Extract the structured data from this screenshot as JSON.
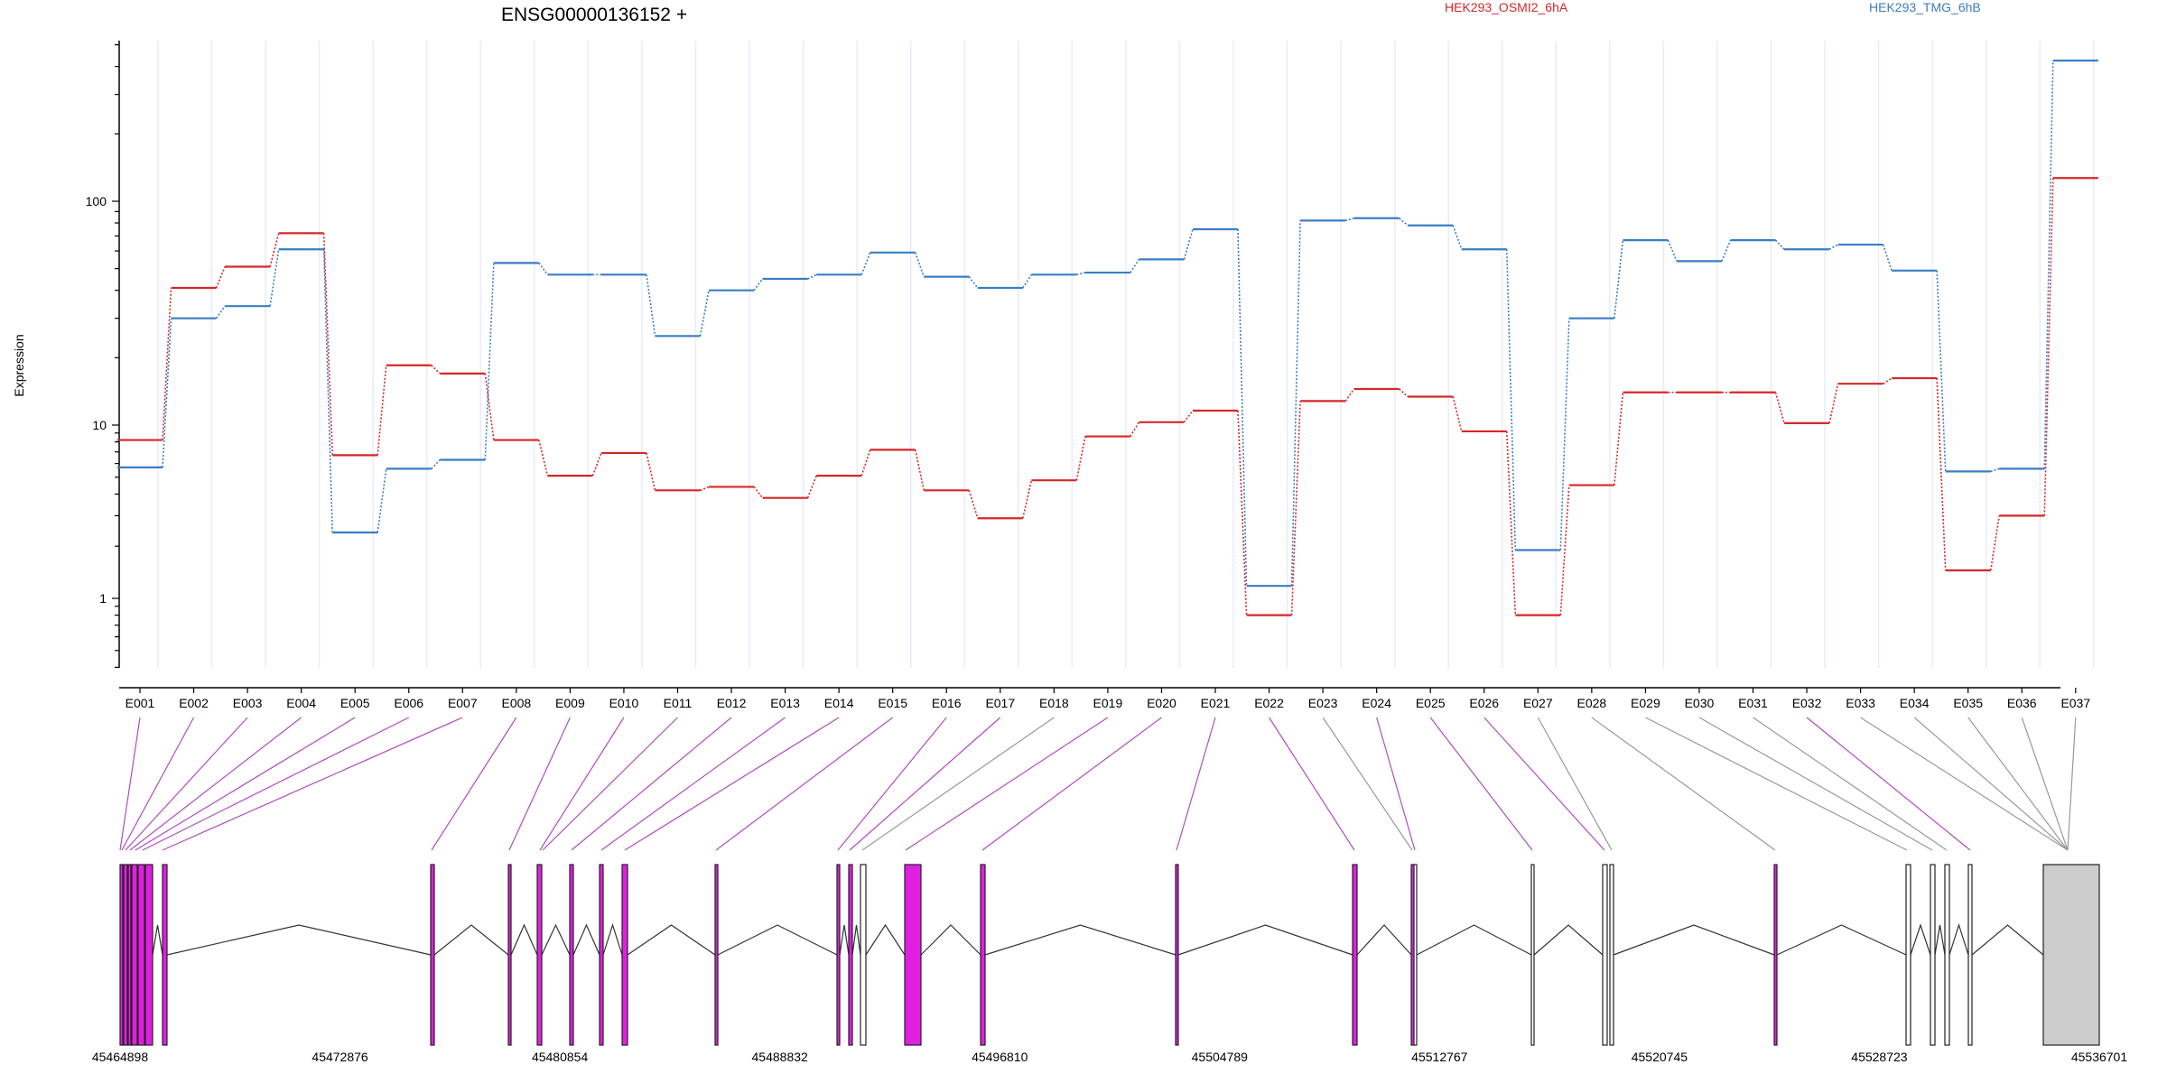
{
  "chart_data": {
    "type": "line",
    "title": "ENSG00000136152 +",
    "ylabel": "Expression",
    "yscale": "log",
    "ylim": [
      0.4,
      550
    ],
    "yticks": [
      1,
      10,
      100
    ],
    "ytick_labels": [
      "1",
      "10",
      "100"
    ],
    "grid": "vertical per exon",
    "legend_placement": "top",
    "categories": [
      "E001",
      "E002",
      "E003",
      "E004",
      "E005",
      "E006",
      "E007",
      "E008",
      "E009",
      "E010",
      "E011",
      "E012",
      "E013",
      "E014",
      "E015",
      "E016",
      "E017",
      "E018",
      "E019",
      "E020",
      "E021",
      "E022",
      "E023",
      "E024",
      "E025",
      "E026",
      "E027",
      "E028",
      "E029",
      "E030",
      "E031",
      "E032",
      "E033",
      "E034",
      "E035",
      "E036",
      "E037"
    ],
    "series": [
      {
        "name": "HEK293_OSMI2_6hA",
        "color": "#d62728",
        "values": [
          8.2,
          41,
          51,
          72,
          6.7,
          18.5,
          17,
          8.2,
          5.1,
          6.9,
          4.2,
          4.4,
          3.8,
          5.1,
          7.2,
          4.2,
          2.9,
          4.8,
          8.6,
          10.3,
          11.6,
          0.8,
          12.8,
          14.5,
          13.4,
          9.2,
          0.8,
          4.5,
          14,
          14,
          14,
          10.2,
          15.3,
          16.2,
          1.45,
          3,
          127
        ]
      },
      {
        "name": "HEK293_TMG_6hB",
        "color": "#3a7dc4",
        "values": [
          5.7,
          30,
          34,
          61,
          2.4,
          5.6,
          6.3,
          53,
          47,
          47,
          25,
          40,
          45,
          47,
          59,
          46,
          41,
          47,
          48,
          55,
          75,
          1.18,
          82,
          84,
          78,
          61,
          1.9,
          30,
          67,
          54,
          67,
          61,
          64,
          49,
          5.4,
          5.6,
          425
        ]
      }
    ],
    "genomic_axis": {
      "tick_labels": [
        "45464898",
        "45472876",
        "45480854",
        "45488832",
        "45496810",
        "45504789",
        "45512767",
        "45520745",
        "45528723",
        "45536701"
      ]
    },
    "exon_colors": {
      "significant": "#e020e0",
      "normal": "#ffffff",
      "last_exon": "#cccccc",
      "link_significant": "#b04cc0",
      "link_normal": "#999999"
    }
  }
}
